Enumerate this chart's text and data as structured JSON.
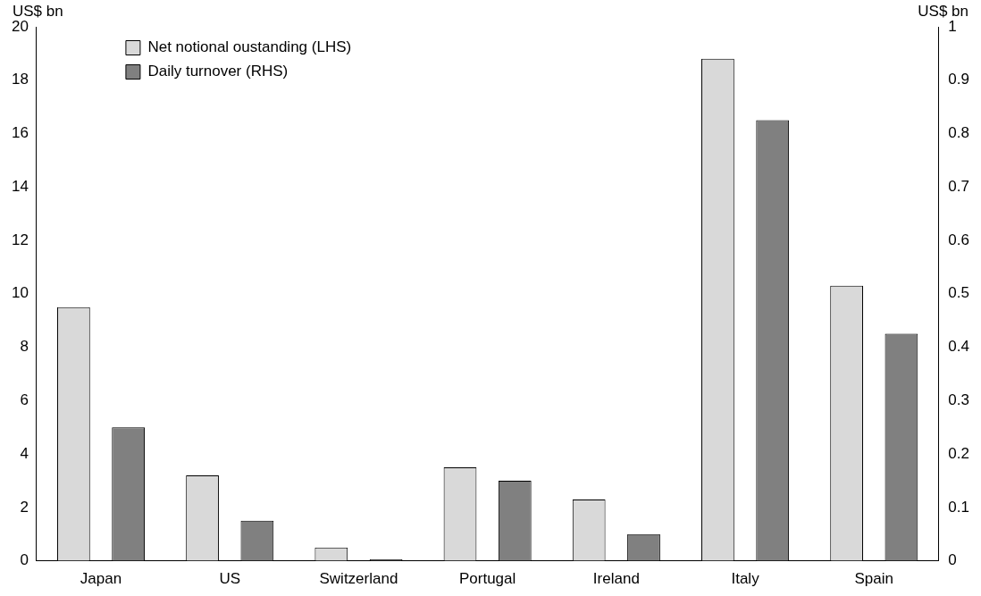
{
  "chart_data": {
    "type": "bar",
    "ylabel": "US$ bn",
    "y2label": "US$ bn",
    "categories": [
      "Japan",
      "US",
      "Switzerland",
      "Portugal",
      "Ireland",
      "Italy",
      "Spain"
    ],
    "series": [
      {
        "name": "Net notional oustanding (LHS)",
        "color": "#d9d9d9",
        "values": [
          9.5,
          3.2,
          0.5,
          3.5,
          2.3,
          18.8,
          10.3
        ]
      },
      {
        "name": "Daily turnover (RHS)",
        "color": "#808080",
        "axis": "y2",
        "values": [
          0.25,
          0.075,
          0.003,
          0.15,
          0.05,
          0.825,
          0.425
        ]
      }
    ],
    "ylim": [
      0,
      20
    ],
    "yticks": [
      0,
      2,
      4,
      6,
      8,
      10,
      12,
      14,
      16,
      18,
      20
    ],
    "y2lim": [
      0,
      1
    ],
    "y2ticks": [
      0,
      0.1,
      0.2,
      0.3,
      0.4,
      0.5,
      0.6,
      0.7,
      0.8,
      0.9,
      1
    ],
    "grid": false,
    "legend": "top left"
  }
}
